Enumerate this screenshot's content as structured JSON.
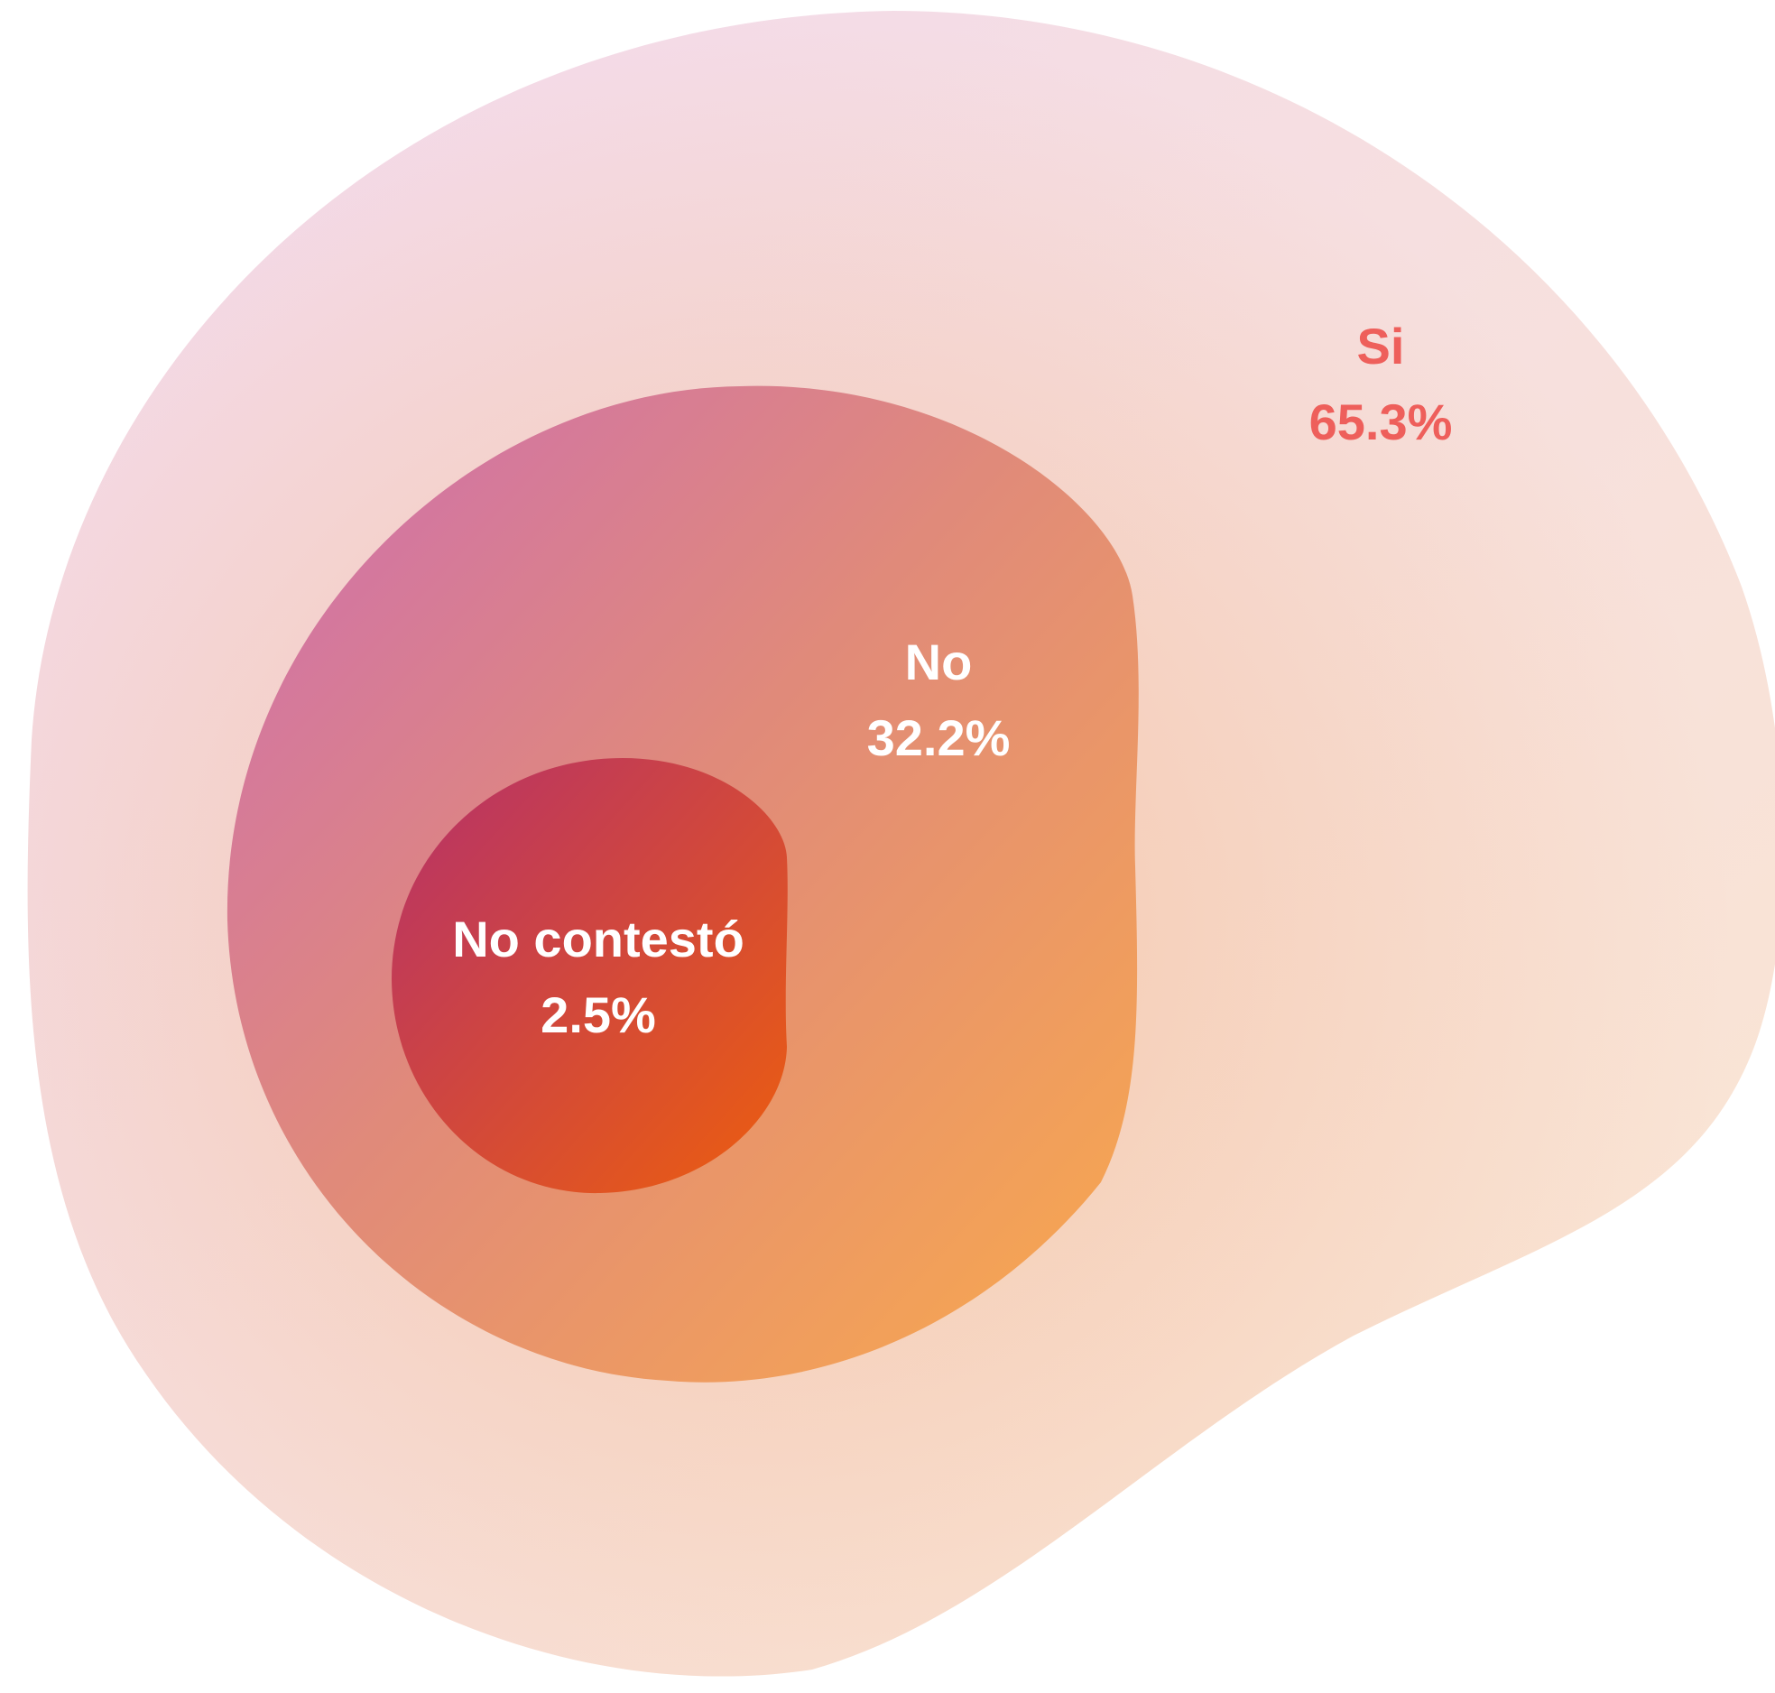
{
  "chart_data": {
    "type": "area",
    "series": [
      {
        "name": "Si",
        "value": 65.3,
        "value_label": "65.3%",
        "label_color": "#ee5f5b"
      },
      {
        "name": "No",
        "value": 32.2,
        "value_label": "32.2%",
        "label_color": "#ffffff"
      },
      {
        "name": "No contestó",
        "value": 2.5,
        "value_label": "2.5%",
        "label_color": "#ffffff"
      }
    ],
    "unit": "%",
    "colors": {
      "outer_start": "#f3d8ec",
      "outer_end": "#fbe4cc",
      "middle_start": "#d06ea8",
      "middle_end": "#f4a45a",
      "inner_start": "#b83266",
      "inner_end": "#e85a14"
    }
  }
}
